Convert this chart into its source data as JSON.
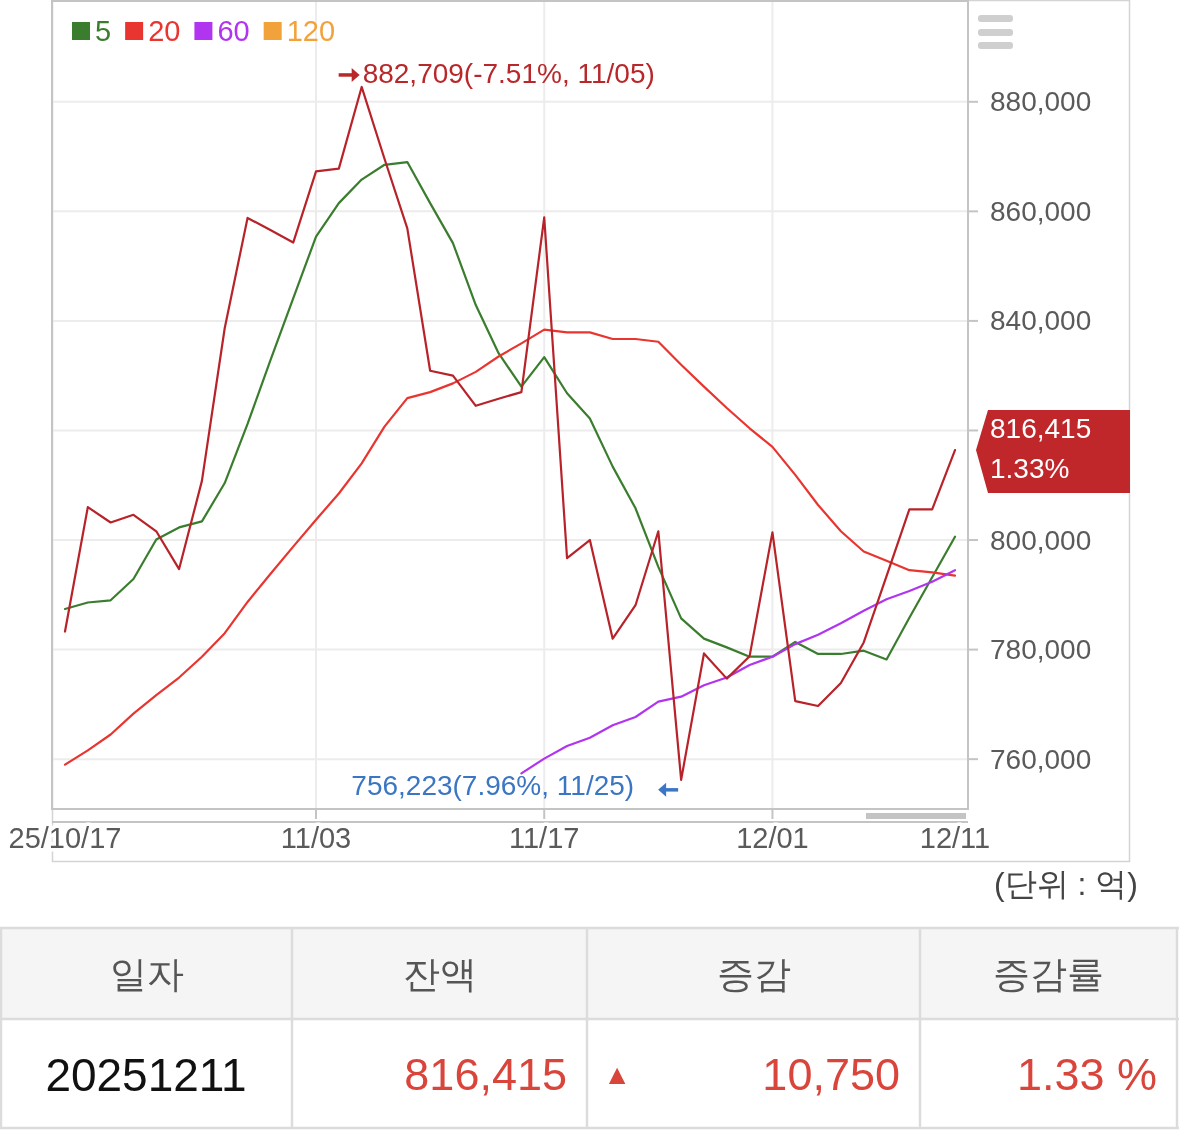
{
  "chart_data": [
    {
      "type": "line",
      "categories": [
        "25/10/17",
        null,
        null,
        null,
        null,
        null,
        null,
        null,
        null,
        null,
        null,
        "11/03",
        null,
        null,
        null,
        null,
        null,
        null,
        null,
        null,
        null,
        "11/17",
        null,
        null,
        null,
        null,
        null,
        null,
        null,
        null,
        null,
        "12/01",
        null,
        null,
        null,
        null,
        null,
        null,
        null,
        "12/11"
      ],
      "series": [
        {
          "name": "5",
          "color": "#3b7d2e",
          "values": [
            787400,
            788600,
            789000,
            792900,
            800100,
            802300,
            803400,
            810400,
            821200,
            832800,
            844100,
            855400,
            861500,
            865800,
            868500,
            869000,
            861500,
            854200,
            842900,
            834100,
            828000,
            833400,
            826800,
            822200,
            813400,
            805800,
            795100,
            785700,
            782000,
            780400,
            778700,
            778700,
            781400,
            779200,
            779200,
            779800,
            778200,
            785800,
            793200,
            800600
          ]
        },
        {
          "name": "20",
          "color": "#e8352f",
          "values": [
            759000,
            761600,
            764500,
            768300,
            771700,
            774900,
            778700,
            783000,
            788700,
            793800,
            798800,
            803700,
            808500,
            814000,
            820700,
            825900,
            827000,
            828600,
            830700,
            833500,
            835900,
            838400,
            837900,
            837900,
            836700,
            836700,
            836200,
            832000,
            828000,
            824100,
            820400,
            817000,
            811900,
            806400,
            801600,
            797900,
            796200,
            794500,
            794100,
            793500
          ]
        },
        {
          "name": "60",
          "color": "#b034f0",
          "values": [
            null,
            null,
            null,
            null,
            null,
            null,
            null,
            null,
            null,
            null,
            null,
            null,
            null,
            null,
            null,
            null,
            null,
            null,
            null,
            null,
            757400,
            760100,
            762400,
            763900,
            766200,
            767700,
            770500,
            771400,
            773500,
            774900,
            777200,
            778700,
            781000,
            782700,
            784800,
            787100,
            789200,
            790700,
            792400,
            794500
          ]
        },
        {
          "name": "120",
          "color": "#f2a23a",
          "values": [
            null,
            null,
            null,
            null,
            null,
            null,
            null,
            null,
            null,
            null,
            null,
            null,
            null,
            null,
            null,
            null,
            null,
            null,
            null,
            null,
            null,
            null,
            null,
            null,
            null,
            null,
            null,
            null,
            null,
            null,
            null,
            null,
            null,
            null,
            null,
            null,
            null,
            null,
            null,
            null
          ]
        },
        {
          "color": "#b8232a",
          "values": [
            783300,
            806000,
            803200,
            804600,
            801600,
            794700,
            810800,
            838700,
            858800,
            856600,
            854300,
            867300,
            867800,
            882709,
            869600,
            856900,
            830900,
            830000,
            824500,
            825800,
            827000,
            858900,
            796700,
            800000,
            782000,
            788100,
            801600,
            756223,
            779300,
            774700,
            778800,
            801400,
            770600,
            769700,
            773900,
            781300,
            793400,
            805600,
            805600,
            816415
          ]
        }
      ],
      "ylim": [
        750900,
        898400
      ],
      "yticks": [
        {
          "value": 760000,
          "label": "760,000"
        },
        {
          "value": 780000,
          "label": "780,000"
        },
        {
          "value": 800000,
          "label": "800,000"
        },
        {
          "value": 820000,
          "label": null
        },
        {
          "value": 840000,
          "label": "840,000"
        },
        {
          "value": 860000,
          "label": "860,000"
        },
        {
          "value": 880000,
          "label": "880,000"
        }
      ],
      "grid": true,
      "legend": "top left",
      "annotations": [
        "882,709(-7.51%, 11/05)",
        "756,223(7.96%, 11/25)",
        "816,415",
        "1.33%",
        "(단위 : 억)"
      ]
    },
    {
      "type": "other",
      "annotations": [
        "일자",
        "잔액",
        "증감",
        "증감률",
        "20251211",
        "816,415",
        "▲",
        "10,750",
        "1.33 %"
      ]
    }
  ]
}
